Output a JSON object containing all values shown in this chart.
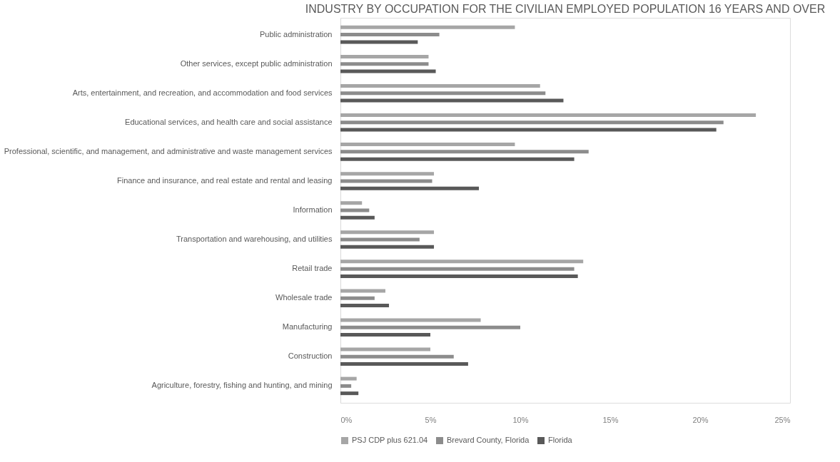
{
  "chart_data": {
    "type": "bar",
    "orientation": "horizontal",
    "title": "INDUSTRY BY OCCUPATION FOR THE CIVILIAN  EMPLOYED POPULATION 16 YEARS AND OVER",
    "categories": [
      "Public administration",
      "Other services, except public administration",
      "Arts, entertainment, and recreation, and accommodation and food services",
      "Educational services, and health care and social assistance",
      "Professional, scientific, and management, and administrative and waste management services",
      "Finance and insurance, and real estate and rental and leasing",
      "Information",
      "Transportation and warehousing, and utilities",
      "Retail trade",
      "Wholesale trade",
      "Manufacturing",
      "Construction",
      "Agriculture, forestry, fishing and hunting, and mining"
    ],
    "series": [
      {
        "name": "PSJ CDP plus 621.04",
        "color": "#a6a6a6",
        "values": [
          9.7,
          4.9,
          11.1,
          23.1,
          9.7,
          5.2,
          1.2,
          5.2,
          13.5,
          2.5,
          7.8,
          5.0,
          0.9
        ]
      },
      {
        "name": "Brevard County, Florida",
        "color": "#8c8c8c",
        "values": [
          5.5,
          4.9,
          11.4,
          21.3,
          13.8,
          5.1,
          1.6,
          4.4,
          13.0,
          1.9,
          10.0,
          6.3,
          0.6
        ]
      },
      {
        "name": "Florida",
        "color": "#595959",
        "values": [
          4.3,
          5.3,
          12.4,
          20.9,
          13.0,
          7.7,
          1.9,
          5.2,
          13.2,
          2.7,
          5.0,
          7.1,
          1.0
        ]
      }
    ],
    "xlim": [
      0,
      25
    ],
    "xticks": [
      {
        "value": 0,
        "label": "0%"
      },
      {
        "value": 5,
        "label": "5%"
      },
      {
        "value": 10,
        "label": "10%"
      },
      {
        "value": 15,
        "label": "15%"
      },
      {
        "value": 20,
        "label": "20%"
      },
      {
        "value": 25,
        "label": "25%"
      }
    ],
    "grid": false,
    "legend": "bottom"
  }
}
